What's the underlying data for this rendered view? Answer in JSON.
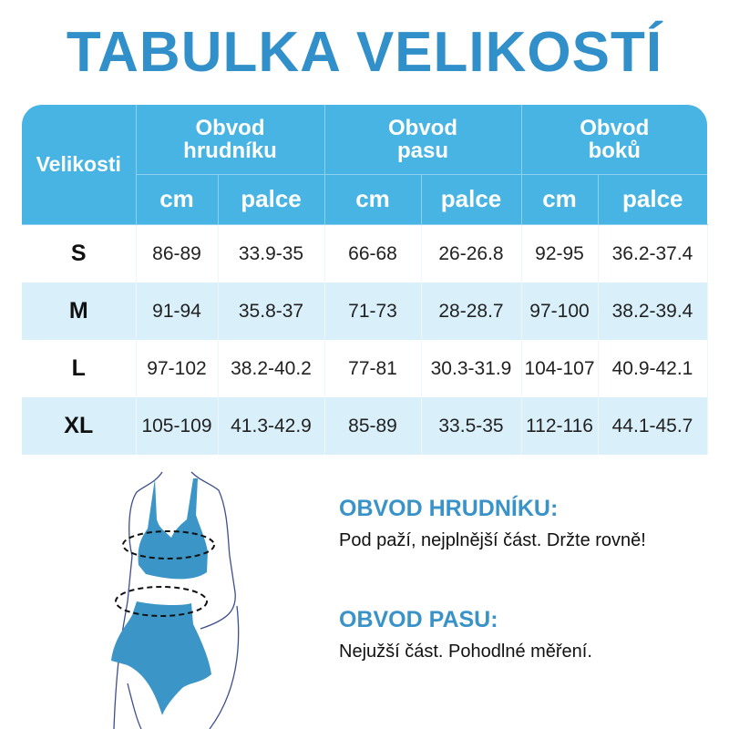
{
  "title": "TABULKA VELIKOSTÍ",
  "table": {
    "size_header": "Velikosti",
    "groups": [
      "Obvod hrudníku",
      "Obvod pasu",
      "Obvod boků"
    ],
    "group_lines": [
      [
        "Obvod",
        "hrudníku"
      ],
      [
        "Obvod",
        "pasu"
      ],
      [
        "Obvod",
        "boků"
      ]
    ],
    "units": [
      "cm",
      "palce",
      "cm",
      "palce",
      "cm",
      "palce"
    ],
    "rows": [
      {
        "size": "S",
        "values": [
          "86-89",
          "33.9-35",
          "66-68",
          "26-26.8",
          "92-95",
          "36.2-37.4"
        ]
      },
      {
        "size": "M",
        "values": [
          "91-94",
          "35.8-37",
          "71-73",
          "28-28.7",
          "97-100",
          "38.2-39.4"
        ]
      },
      {
        "size": "L",
        "values": [
          "97-102",
          "38.2-40.2",
          "77-81",
          "30.3-31.9",
          "104-107",
          "40.9-42.1"
        ]
      },
      {
        "size": "XL",
        "values": [
          "105-109",
          "41.3-42.9",
          "85-89",
          "33.5-35",
          "112-116",
          "44.1-45.7"
        ]
      }
    ]
  },
  "instructions": [
    {
      "heading": "OBVOD HRUDNÍKU:",
      "text": "Pod paží, nejplnější část. Držte rovně!"
    },
    {
      "heading": "OBVOD PASU:",
      "text": "Nejužší část. Pohodlné měření."
    }
  ],
  "colors": {
    "title": "#3190c9",
    "header": "#47b4e3",
    "alt_row": "#d9f0fa",
    "garment": "#3b95c6"
  }
}
